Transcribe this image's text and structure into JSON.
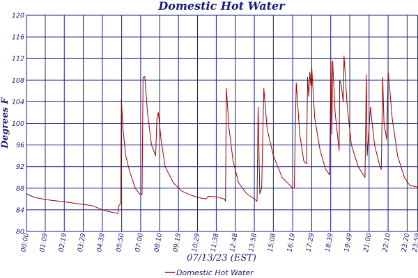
{
  "chart_data": {
    "type": "line",
    "title": "Domestic Hot Water",
    "xlabel": "07/13/23 (EST)",
    "ylabel": "Degrees F",
    "ylim": [
      80,
      120
    ],
    "y_ticks": [
      "80",
      "84",
      "88",
      "92",
      "96",
      "100",
      "104",
      "108",
      "112",
      "116",
      "120"
    ],
    "x_ticks": [
      "00:00",
      "01:09",
      "02:19",
      "03:29",
      "04:39",
      "05:50",
      "07:00",
      "08:10",
      "09:19",
      "10:29",
      "11:38",
      "12:48",
      "13:58",
      "15:08",
      "16:19",
      "17:29",
      "18:39",
      "19:49",
      "21:00",
      "22:10",
      "23:20",
      "23:59"
    ],
    "grid": true,
    "legend_position": "bottom-center",
    "series": [
      {
        "name": "Domestic Hot Water",
        "color": "#990000",
        "points": [
          [
            "00:00",
            87.0
          ],
          [
            "00:10",
            86.7
          ],
          [
            "00:30",
            86.3
          ],
          [
            "01:00",
            86.0
          ],
          [
            "01:09",
            85.9
          ],
          [
            "02:00",
            85.6
          ],
          [
            "02:19",
            85.5
          ],
          [
            "03:00",
            85.2
          ],
          [
            "03:29",
            85.0
          ],
          [
            "04:00",
            84.8
          ],
          [
            "04:20",
            84.4
          ],
          [
            "04:39",
            84.0
          ],
          [
            "05:00",
            83.7
          ],
          [
            "05:20",
            83.5
          ],
          [
            "05:36",
            83.3
          ],
          [
            "05:40",
            84.8
          ],
          [
            "05:47",
            85.2
          ],
          [
            "05:49",
            104.5
          ],
          [
            "05:55",
            99.0
          ],
          [
            "06:05",
            94.0
          ],
          [
            "06:20",
            91.0
          ],
          [
            "06:40",
            88.0
          ],
          [
            "06:55",
            87.0
          ],
          [
            "07:05",
            86.8
          ],
          [
            "07:09",
            108.5
          ],
          [
            "07:15",
            108.7
          ],
          [
            "07:25",
            102.0
          ],
          [
            "07:40",
            96.0
          ],
          [
            "07:55",
            94.0
          ],
          [
            "08:00",
            101.0
          ],
          [
            "08:05",
            102.0
          ],
          [
            "08:15",
            97.0
          ],
          [
            "08:30",
            92.0
          ],
          [
            "09:00",
            89.0
          ],
          [
            "09:30",
            87.5
          ],
          [
            "10:00",
            86.8
          ],
          [
            "10:29",
            86.3
          ],
          [
            "11:00",
            86.0
          ],
          [
            "11:10",
            86.5
          ],
          [
            "11:38",
            86.4
          ],
          [
            "12:08",
            86.0
          ],
          [
            "12:12",
            85.6
          ],
          [
            "12:15",
            106.5
          ],
          [
            "12:25",
            99.0
          ],
          [
            "12:40",
            93.0
          ],
          [
            "13:00",
            89.0
          ],
          [
            "13:30",
            87.0
          ],
          [
            "13:58",
            86.0
          ],
          [
            "14:08",
            85.6
          ],
          [
            "14:12",
            103.0
          ],
          [
            "14:18",
            87.0
          ],
          [
            "14:25",
            88.0
          ],
          [
            "14:33",
            106.5
          ],
          [
            "14:45",
            99.0
          ],
          [
            "15:08",
            94.0
          ],
          [
            "15:40",
            90.0
          ],
          [
            "16:19",
            88.0
          ],
          [
            "16:25",
            88.0
          ],
          [
            "16:32",
            107.5
          ],
          [
            "16:45",
            98.0
          ],
          [
            "17:00",
            93.0
          ],
          [
            "17:10",
            92.5
          ],
          [
            "17:14",
            108.5
          ],
          [
            "17:18",
            105.0
          ],
          [
            "17:22",
            109.5
          ],
          [
            "17:26",
            107.0
          ],
          [
            "17:29",
            110.5
          ],
          [
            "17:40",
            101.0
          ],
          [
            "18:00",
            95.0
          ],
          [
            "18:20",
            91.5
          ],
          [
            "18:35",
            90.5
          ],
          [
            "18:40",
            111.5
          ],
          [
            "18:43",
            98.0
          ],
          [
            "18:46",
            111.5
          ],
          [
            "18:55",
            102.0
          ],
          [
            "19:10",
            95.0
          ],
          [
            "19:12",
            108.0
          ],
          [
            "19:18",
            107.0
          ],
          [
            "19:25",
            104.0
          ],
          [
            "19:28",
            112.5
          ],
          [
            "19:40",
            103.0
          ],
          [
            "19:55",
            96.0
          ],
          [
            "20:20",
            92.0
          ],
          [
            "20:45",
            90.0
          ],
          [
            "20:50",
            109.0
          ],
          [
            "20:53",
            94.0
          ],
          [
            "21:05",
            103.0
          ],
          [
            "21:20",
            96.0
          ],
          [
            "21:40",
            92.0
          ],
          [
            "21:45",
            91.5
          ],
          [
            "21:50",
            108.5
          ],
          [
            "21:55",
            100.0
          ],
          [
            "22:05",
            97.0
          ],
          [
            "22:10",
            109.5
          ],
          [
            "22:15",
            107.0
          ],
          [
            "22:25",
            101.0
          ],
          [
            "22:45",
            94.0
          ],
          [
            "23:10",
            90.0
          ],
          [
            "23:30",
            88.5
          ],
          [
            "23:59",
            88.2
          ]
        ]
      }
    ]
  }
}
